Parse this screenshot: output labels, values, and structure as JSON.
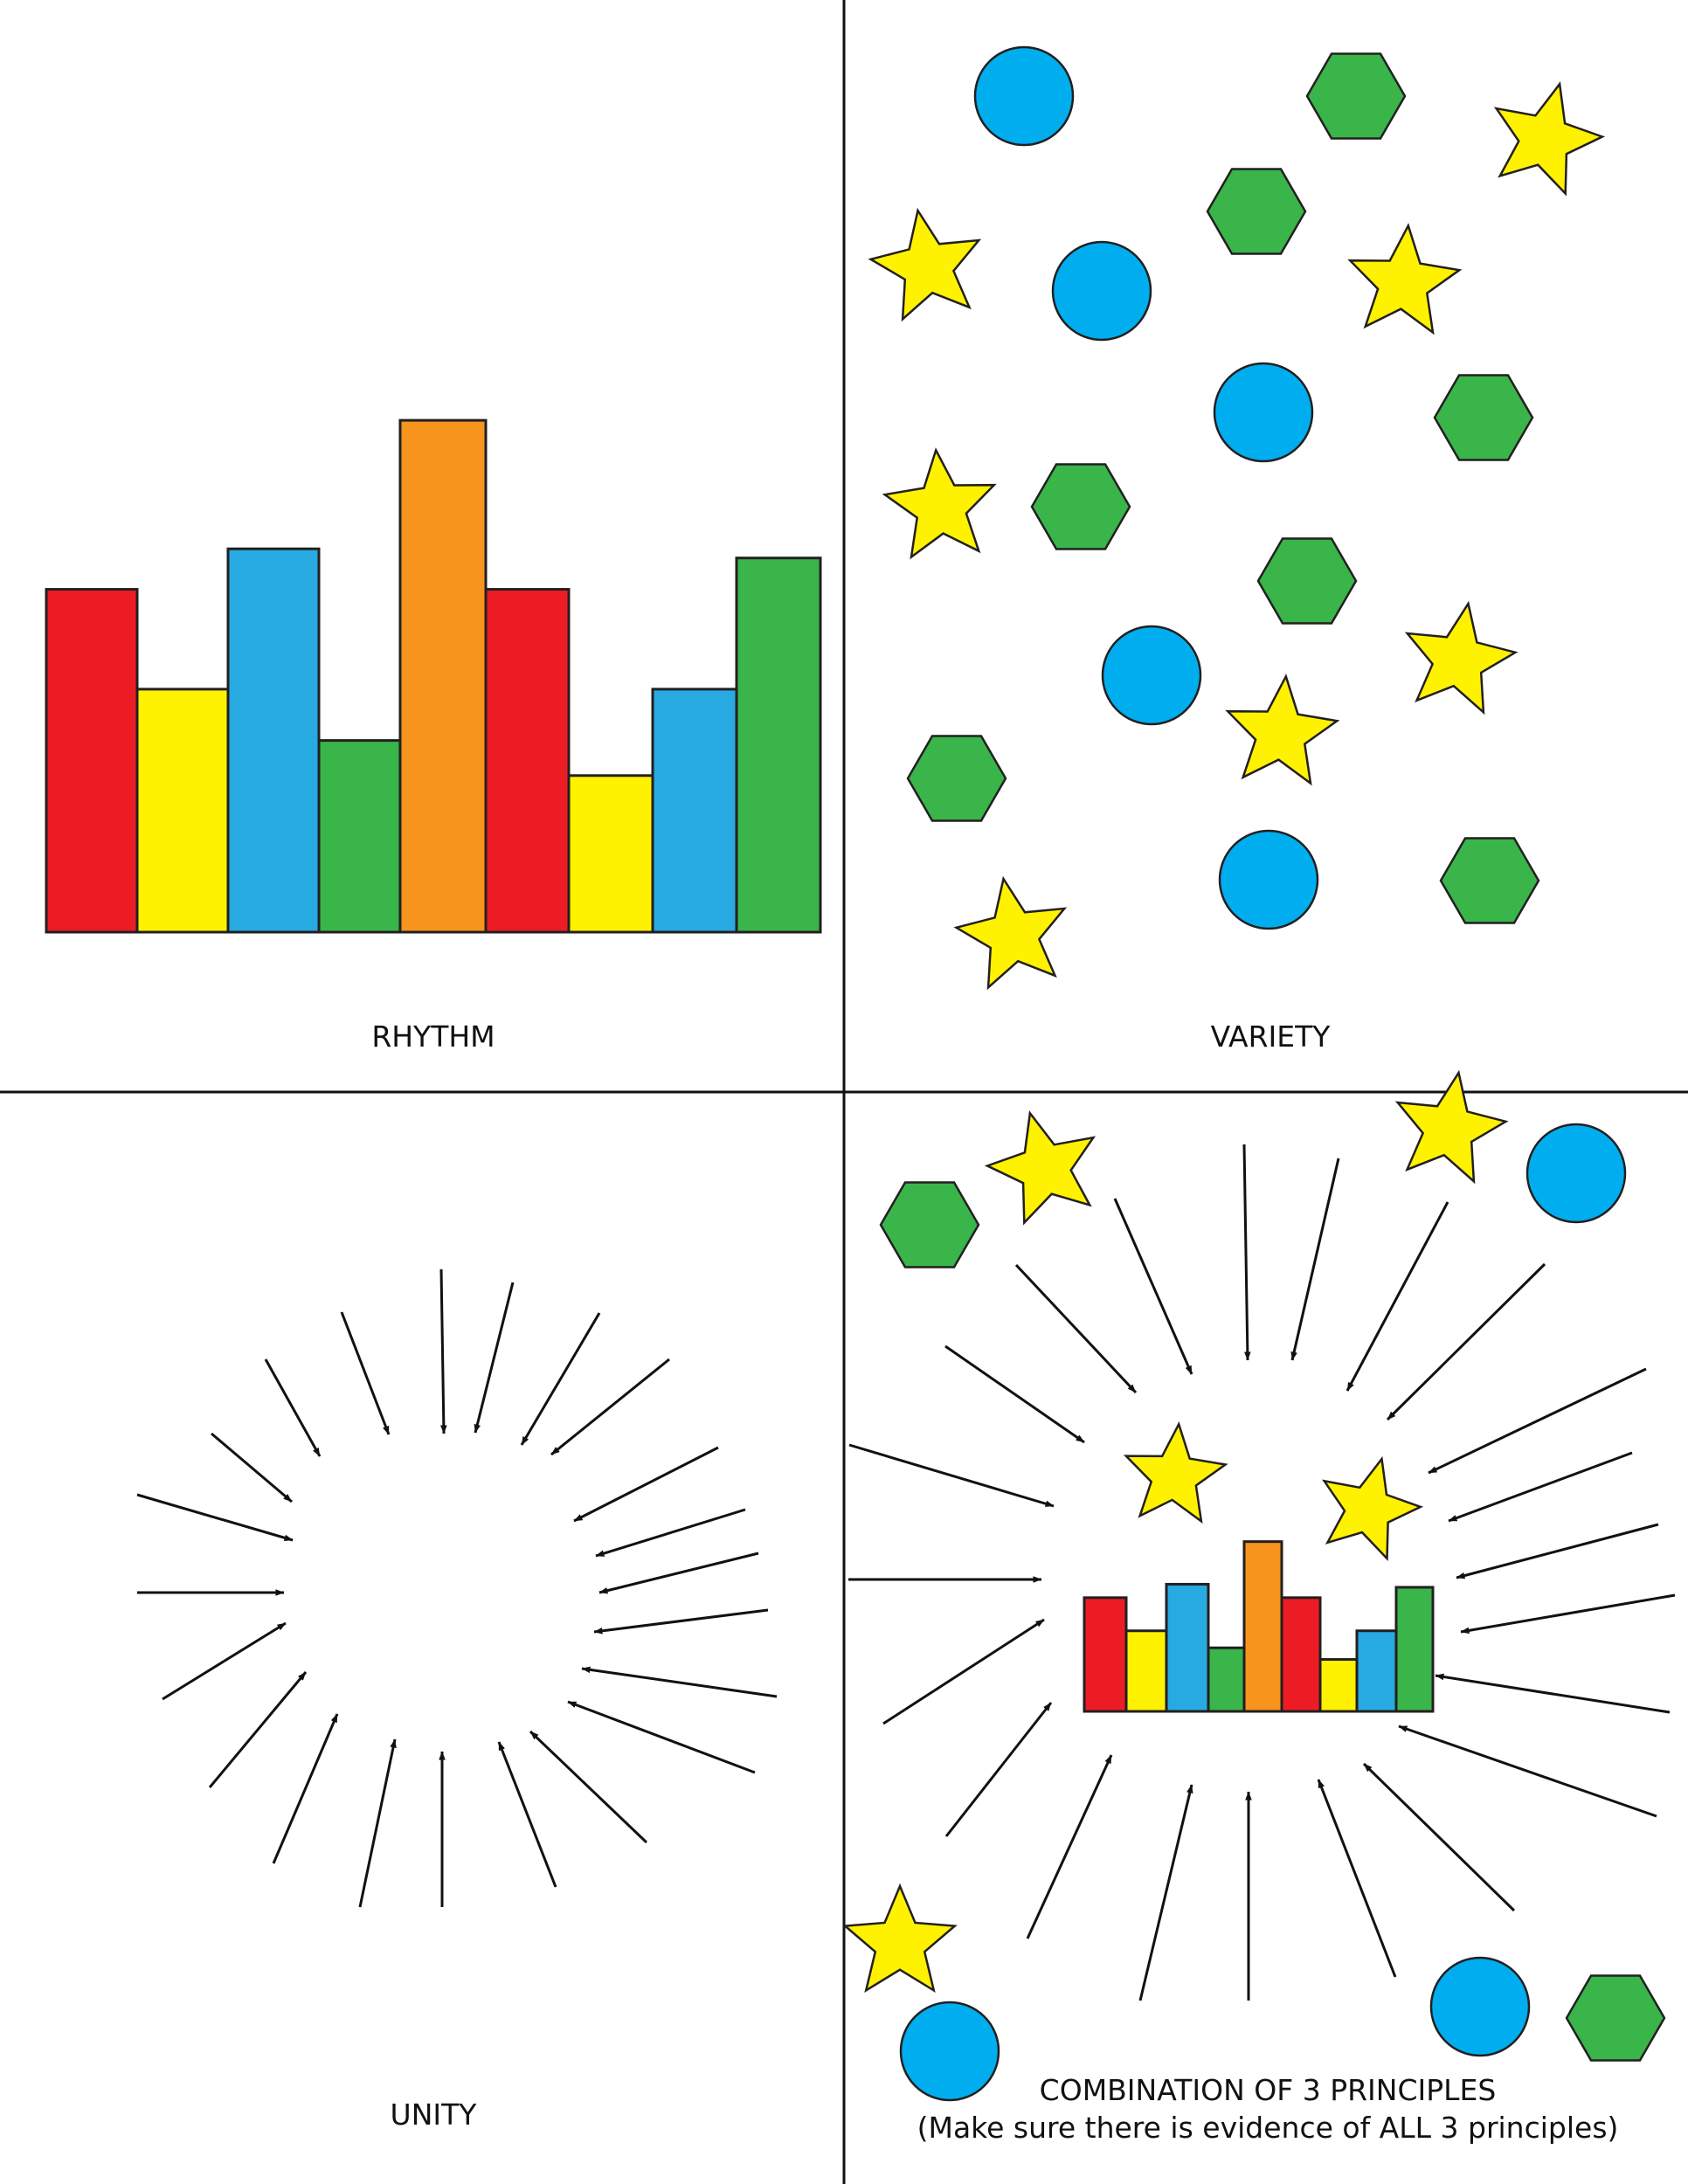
{
  "panels": {
    "rhythm": {
      "label": "RHYTHM"
    },
    "variety": {
      "label": "VARIETY"
    },
    "unity": {
      "label": "UNITY"
    },
    "combination": {
      "label": "COMBINATION OF 3 PRINCIPLES",
      "sublabel": "(Make sure there is evidence of ALL 3 principles)"
    }
  },
  "colors": {
    "red": "#ed1c24",
    "yellow": "#fff200",
    "blue_bar": "#27aae1",
    "green": "#39b54a",
    "orange": "#f7941d",
    "circle_blue": "#00aeef",
    "outline": "#231f20"
  },
  "rhythm_bars": {
    "colors": [
      "red",
      "yellow",
      "blue_bar",
      "green",
      "orange",
      "red",
      "yellow",
      "blue_bar",
      "green"
    ],
    "relative_heights": [
      0.635,
      0.45,
      0.71,
      0.355,
      0.948,
      0.635,
      0.29,
      0.45,
      0.693
    ]
  },
  "shape_types": [
    "circle",
    "hexagon",
    "star"
  ],
  "icons": {
    "circle": "blue-circle-icon",
    "hexagon": "green-hexagon-icon",
    "star": "yellow-star-icon",
    "arrow": "arrow-icon"
  }
}
